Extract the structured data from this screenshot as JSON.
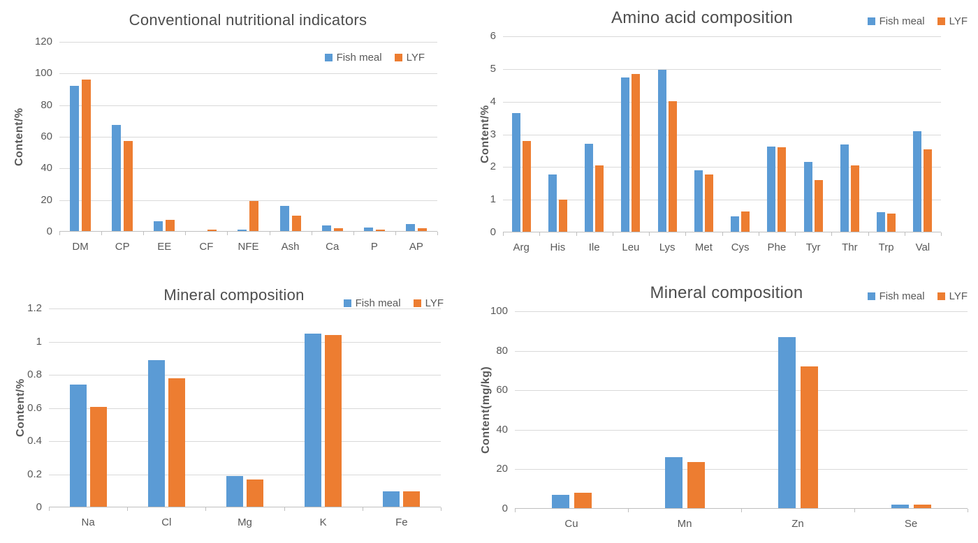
{
  "figure": {
    "background": "#ffffff"
  },
  "series_colors": {
    "fish_meal": "#5B9BD5",
    "lyf": "#ED7D31"
  },
  "text_colors": {
    "title": "#4d4d4d",
    "labels": "#595959",
    "gridline": "#d9d9d9",
    "axis": "#bfbfbf"
  },
  "chart_data": [
    {
      "type": "bar",
      "title": "Conventional nutritional indicators",
      "ylabel": "Content/%",
      "xlabel": "",
      "ylim": [
        0,
        120
      ],
      "yticks": [
        "0",
        "20",
        "40",
        "60",
        "80",
        "100",
        "120"
      ],
      "grid": true,
      "legend_position": "inside-top-right",
      "categories": [
        "DM",
        "CP",
        "EE",
        "CF",
        "NFE",
        "Ash",
        "Ca",
        "P",
        "AP"
      ],
      "series": [
        {
          "name": "Fish meal",
          "color": "#5B9BD5",
          "values": [
            92,
            67.5,
            6.5,
            0,
            1.5,
            16.3,
            4,
            2.8,
            4.8
          ]
        },
        {
          "name": "LYF",
          "color": "#ED7D31",
          "values": [
            96,
            57.2,
            7.6,
            1.2,
            19.6,
            10.2,
            2,
            1.2,
            2.3
          ]
        }
      ]
    },
    {
      "type": "bar",
      "title": "Amino acid composition",
      "ylabel": "Content/%",
      "xlabel": "",
      "ylim": [
        0,
        6
      ],
      "yticks": [
        "0",
        "1",
        "2",
        "3",
        "4",
        "5",
        "6"
      ],
      "grid": true,
      "legend_position": "top-right",
      "categories": [
        "Arg",
        "His",
        "Ile",
        "Leu",
        "Lys",
        "Met",
        "Cys",
        "Phe",
        "Tyr",
        "Thr",
        "Trp",
        "Val"
      ],
      "series": [
        {
          "name": "Fish meal",
          "color": "#5B9BD5",
          "values": [
            3.65,
            1.78,
            2.72,
            4.75,
            4.98,
            1.9,
            0.5,
            2.62,
            2.16,
            2.7,
            0.62,
            3.1
          ]
        },
        {
          "name": "LYF",
          "color": "#ED7D31",
          "values": [
            2.8,
            1.0,
            2.04,
            4.85,
            4.02,
            1.78,
            0.64,
            2.6,
            1.6,
            2.04,
            0.58,
            2.54
          ]
        }
      ]
    },
    {
      "type": "bar",
      "title": "Mineral composition",
      "ylabel": "Content/%",
      "xlabel": "",
      "ylim": [
        0,
        1.2
      ],
      "yticks": [
        "0",
        "0.2",
        "0.4",
        "0.6",
        "0.8",
        "1",
        "1.2"
      ],
      "grid": true,
      "legend_position": "top-right",
      "categories": [
        "Na",
        "Cl",
        "Mg",
        "K",
        "Fe"
      ],
      "series": [
        {
          "name": "Fish meal",
          "color": "#5B9BD5",
          "values": [
            0.74,
            0.89,
            0.19,
            1.05,
            0.095
          ]
        },
        {
          "name": "LYF",
          "color": "#ED7D31",
          "values": [
            0.605,
            0.78,
            0.17,
            1.04,
            0.095
          ]
        }
      ]
    },
    {
      "type": "bar",
      "title": "Mineral composition",
      "ylabel": "Content(mg/kg)",
      "xlabel": "",
      "ylim": [
        0,
        100
      ],
      "yticks": [
        "0",
        "20",
        "40",
        "60",
        "80",
        "100"
      ],
      "grid": true,
      "legend_position": "top-right",
      "categories": [
        "Cu",
        "Mn",
        "Zn",
        "Se"
      ],
      "series": [
        {
          "name": "Fish meal",
          "color": "#5B9BD5",
          "values": [
            7,
            26,
            87,
            2
          ]
        },
        {
          "name": "LYF",
          "color": "#ED7D31",
          "values": [
            8,
            23.5,
            72,
            2
          ]
        }
      ]
    }
  ]
}
